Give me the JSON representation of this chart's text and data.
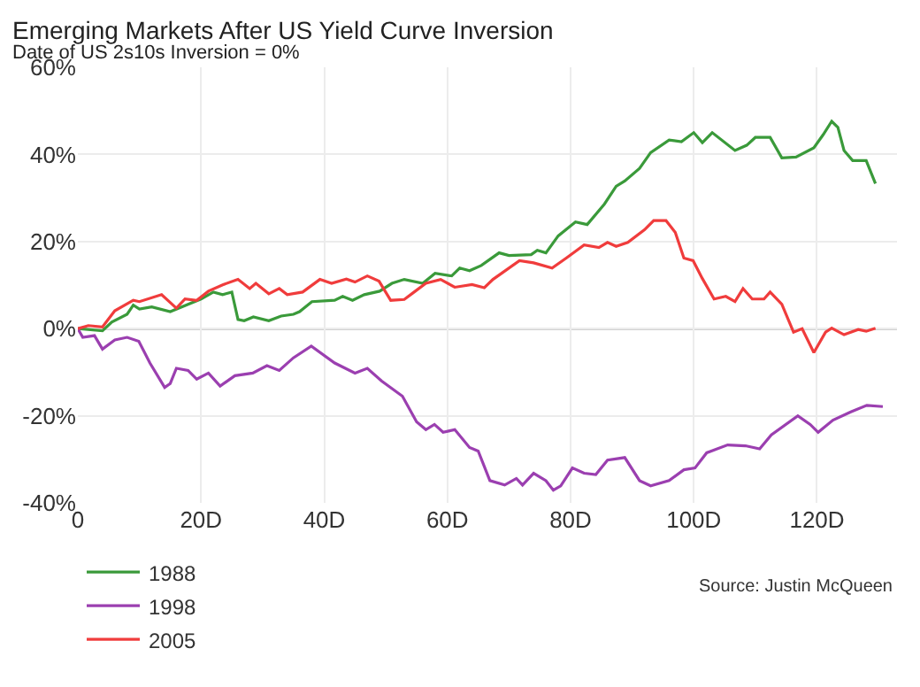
{
  "chart_data": {
    "type": "line",
    "title": "Emerging Markets After US Yield Curve Inversion",
    "subtitle": "Date of US 2s10s Inversion = 0%",
    "annotations": [
      "Source: Justin McQueen"
    ],
    "xlim": [
      0,
      133
    ],
    "xticks": [
      0,
      {
        "value": 20,
        "label": "20D"
      },
      {
        "value": 40,
        "label": "40D"
      },
      {
        "value": 60,
        "label": "60D"
      },
      {
        "value": 80,
        "label": "80D"
      },
      {
        "value": 100,
        "label": "100D"
      },
      {
        "value": 120,
        "label": "120D"
      }
    ],
    "ylim": [
      -40,
      60
    ],
    "yticks": [
      {
        "value": -40,
        "label": "-40%"
      },
      {
        "value": -20,
        "label": "-20%"
      },
      {
        "value": 0,
        "label": "0%"
      },
      {
        "value": 20,
        "label": "20%"
      },
      {
        "value": 40,
        "label": "40%"
      },
      {
        "value": 60,
        "label": "60%"
      }
    ],
    "ref_lines": [
      {
        "axis": "y",
        "value": 0,
        "color": "#a0a0a0"
      }
    ],
    "grid": true,
    "legend": "bottom",
    "line_style": "solid",
    "series": [
      {
        "name": "1988",
        "color": "#3a9a3a",
        "x": [
          0,
          4,
          5.5,
          8,
          9,
          10,
          12,
          15,
          20,
          22,
          23.5,
          25,
          26,
          27,
          28.5,
          31,
          33,
          35,
          36,
          38,
          41.7,
          43,
          44.6,
          46.5,
          49,
          51,
          53,
          56,
          58,
          60.7,
          62,
          63.6,
          65.5,
          68.4,
          70,
          73.6,
          74.6,
          76,
          78,
          80.8,
          82.7,
          85.5,
          87.4,
          88.8,
          91.2,
          93,
          96,
          98,
          100,
          101.4,
          103,
          106.7,
          108.6,
          110,
          112.4,
          114.3,
          116.6,
          119.5,
          121,
          122.4,
          123.4,
          124.4,
          125.8,
          128,
          129.5
        ],
        "values": [
          0,
          -0.5,
          1.5,
          3.3,
          5.4,
          4.5,
          5,
          3.9,
          6.8,
          8.4,
          7.8,
          8.4,
          2.1,
          1.8,
          2.7,
          1.8,
          2.9,
          3.3,
          3.9,
          6.2,
          6.5,
          7.4,
          6.5,
          7.8,
          8.6,
          10.4,
          11.3,
          10.4,
          12.7,
          12.1,
          13.9,
          13.3,
          14.5,
          17.4,
          16.8,
          17,
          18,
          17.4,
          21.3,
          24.5,
          23.9,
          28.6,
          32.7,
          33.9,
          36.8,
          40.4,
          43.3,
          42.9,
          45,
          42.7,
          45,
          40.9,
          42.1,
          43.9,
          43.9,
          39.2,
          39.4,
          41.5,
          44.5,
          47.6,
          46.2,
          40.9,
          38.6,
          38.6,
          33.3
        ]
      },
      {
        "name": "1998",
        "color": "#9b3fb0",
        "x": [
          0,
          0.8,
          2.7,
          4,
          6,
          8,
          9.9,
          11.7,
          14.1,
          15,
          16,
          17.9,
          19.3,
          21.2,
          23.1,
          25.5,
          28.4,
          30.7,
          32.7,
          35,
          37.9,
          41.7,
          45,
          47,
          49.3,
          52.7,
          55,
          56.5,
          57.9,
          59.3,
          61.2,
          63.6,
          65,
          66.9,
          69.3,
          71.2,
          72.2,
          74,
          76,
          77.2,
          78.4,
          80.3,
          82.2,
          84.1,
          86,
          88.8,
          91.2,
          93,
          96,
          98.4,
          100.2,
          102.1,
          105.5,
          108.4,
          110.7,
          112.6,
          116.9,
          118.9,
          120.2,
          122.6,
          125.5,
          128.1,
          130.7
        ],
        "values": [
          0,
          -2,
          -1.6,
          -4.7,
          -2.6,
          -2,
          -2.9,
          -7.9,
          -13.5,
          -12.6,
          -9.1,
          -9.6,
          -11.6,
          -10.2,
          -13.2,
          -10.8,
          -10.2,
          -8.5,
          -9.6,
          -6.7,
          -4,
          -7.9,
          -10.2,
          -9.1,
          -12,
          -15.5,
          -21.4,
          -23.2,
          -22,
          -23.8,
          -23.2,
          -27.3,
          -28.1,
          -34.9,
          -35.9,
          -34.4,
          -35.9,
          -33.2,
          -34.9,
          -37.1,
          -36.1,
          -32,
          -33.2,
          -33.5,
          -30.2,
          -29.6,
          -34.9,
          -36.1,
          -34.9,
          -32.4,
          -32,
          -28.5,
          -26.7,
          -26.9,
          -27.6,
          -24.4,
          -20,
          -22,
          -23.8,
          -21,
          -19.1,
          -17.6,
          -17.9
        ]
      },
      {
        "name": "2005",
        "color": "#f03c3c",
        "x": [
          0,
          1.7,
          4,
          6,
          9,
          10,
          13.6,
          16,
          17.4,
          19.3,
          21.2,
          23.6,
          26,
          27.9,
          28.9,
          31,
          32.7,
          34,
          36.5,
          39.3,
          41.2,
          43.6,
          45,
          47,
          48.9,
          50.8,
          53,
          54.6,
          56.5,
          58.9,
          61.2,
          64,
          66,
          67.4,
          71.7,
          74,
          77,
          79.3,
          82.2,
          84.6,
          86,
          87.4,
          89.3,
          92,
          93.5,
          95.5,
          97,
          98.4,
          99.9,
          101.4,
          103.3,
          105.2,
          106.7,
          108,
          109.5,
          111.4,
          112.4,
          114.3,
          116.2,
          117.6,
          119.5,
          121.4,
          122.4,
          124.4,
          126.7,
          128,
          129.5
        ],
        "values": [
          0,
          0.7,
          0.4,
          4.1,
          6.5,
          6.2,
          7.8,
          4.7,
          6.8,
          6.5,
          8.6,
          10.1,
          11.3,
          9.2,
          10.4,
          8,
          9.2,
          7.8,
          8.4,
          11.3,
          10.4,
          11.4,
          10.7,
          12.1,
          10.9,
          6.5,
          6.7,
          8.4,
          10.4,
          11.3,
          9.5,
          10.1,
          9.4,
          11.3,
          15.6,
          15.1,
          13.9,
          16.2,
          19.2,
          18.6,
          19.8,
          18.9,
          19.8,
          22.7,
          24.8,
          24.8,
          22.1,
          16.2,
          15.6,
          11.5,
          6.8,
          7.4,
          6.2,
          9.2,
          6.8,
          6.8,
          8.4,
          5.6,
          -0.8,
          0,
          -5.5,
          -0.8,
          0.1,
          -1.4,
          -0.2,
          -0.6,
          0.1
        ]
      }
    ]
  }
}
